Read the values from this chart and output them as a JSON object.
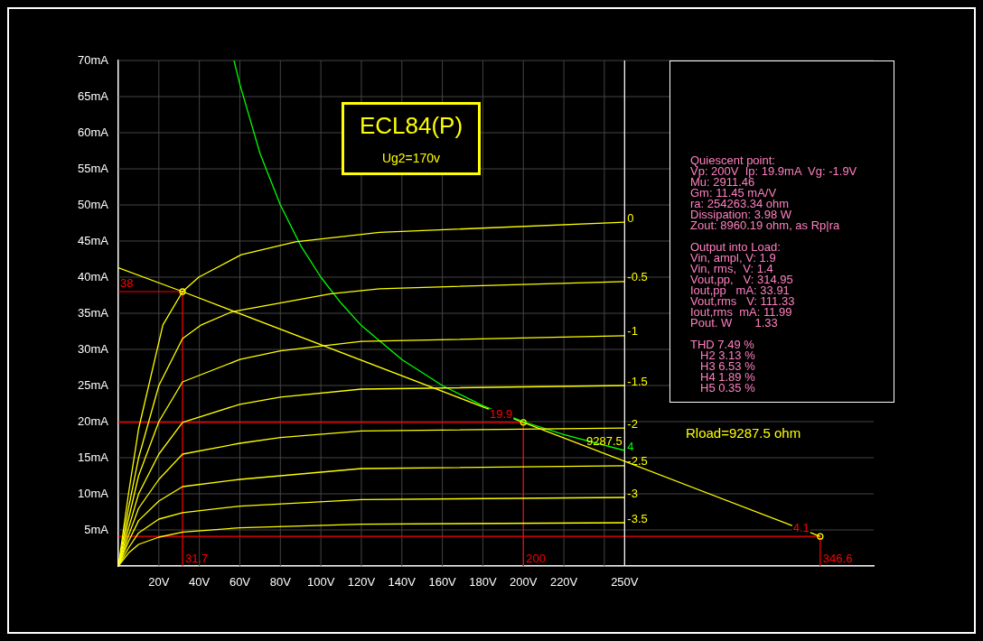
{
  "chart_data": {
    "type": "line",
    "title": "ECL84(P)",
    "subtitle": "Ug2=170v",
    "xlim": [
      0,
      373
    ],
    "ylim": [
      0,
      70
    ],
    "xticks": [
      {
        "value": 20,
        "label": "20V"
      },
      {
        "value": 40,
        "label": "40V"
      },
      {
        "value": 60,
        "label": "60V"
      },
      {
        "value": 80,
        "label": "80V"
      },
      {
        "value": 100,
        "label": "100V"
      },
      {
        "value": 120,
        "label": "120V"
      },
      {
        "value": 140,
        "label": "140V"
      },
      {
        "value": 160,
        "label": "160V"
      },
      {
        "value": 180,
        "label": "180V"
      },
      {
        "value": 200,
        "label": "200V"
      },
      {
        "value": 220,
        "label": "220V"
      },
      {
        "value": 240,
        "label": null
      },
      {
        "value": 250,
        "label": "250V"
      }
    ],
    "yticks": [
      {
        "value": 5,
        "label": "5mA"
      },
      {
        "value": 10,
        "label": "10mA"
      },
      {
        "value": 15,
        "label": "15mA"
      },
      {
        "value": 20,
        "label": "20mA"
      },
      {
        "value": 25,
        "label": "25mA"
      },
      {
        "value": 30,
        "label": "30mA"
      },
      {
        "value": 35,
        "label": "35mA"
      },
      {
        "value": 40,
        "label": "40mA"
      },
      {
        "value": 45,
        "label": "45mA"
      },
      {
        "value": 50,
        "label": "50mA"
      },
      {
        "value": 55,
        "label": "55mA"
      },
      {
        "value": 60,
        "label": "60mA"
      },
      {
        "value": 65,
        "label": "65mA"
      },
      {
        "value": 70,
        "label": "70mA"
      }
    ],
    "grid": true,
    "legend": false,
    "marker": "none",
    "line_style": "solid",
    "series": [
      {
        "name": "0",
        "color": "#ffff00",
        "x": [
          0,
          5,
          10,
          22,
          31.7,
          39.7,
          60.7,
          87.5,
          129,
          250
        ],
        "values": [
          0,
          10,
          19,
          33.4,
          38,
          40,
          43.1,
          44.9,
          46.2,
          47.6
        ]
      },
      {
        "name": "-0.5",
        "color": "#ffff00",
        "x": [
          0,
          5,
          10,
          20,
          31.7,
          41,
          56,
          105,
          129,
          250
        ],
        "values": [
          0,
          8,
          15,
          25,
          31.5,
          33.4,
          35.2,
          37.7,
          38.4,
          39.4
        ]
      },
      {
        "name": "-1",
        "color": "#ffff00",
        "x": [
          0,
          5,
          10,
          20,
          31.7,
          60,
          80,
          120,
          250
        ],
        "values": [
          0,
          6.5,
          12.5,
          20,
          25.5,
          28.6,
          29.8,
          31.1,
          31.9
        ]
      },
      {
        "name": "-1.5",
        "color": "#ffff00",
        "x": [
          0,
          5,
          10,
          20,
          31.7,
          60,
          80,
          120,
          250
        ],
        "values": [
          0,
          5.2,
          10,
          15.5,
          19.9,
          22.4,
          23.4,
          24.5,
          25
        ]
      },
      {
        "name": "-2",
        "color": "#ffff00",
        "x": [
          0,
          5,
          10,
          20,
          31.7,
          60,
          80,
          120,
          250
        ],
        "values": [
          0,
          4.2,
          8,
          12,
          15.5,
          17,
          17.8,
          18.7,
          19.1
        ]
      },
      {
        "name": "-2.5",
        "color": "#ffff00",
        "x": [
          0,
          5,
          10,
          20,
          31.7,
          60,
          100,
          120,
          250
        ],
        "values": [
          0,
          3.4,
          6.3,
          9,
          11,
          12,
          13,
          13.5,
          13.9
        ]
      },
      {
        "name": "-3",
        "color": "#ffff00",
        "x": [
          0,
          5,
          10,
          20,
          31.7,
          60,
          120,
          250
        ],
        "values": [
          0,
          2.5,
          4.6,
          6.5,
          7.4,
          8.3,
          9.2,
          9.5
        ]
      },
      {
        "name": "-3.5",
        "color": "#ffff00",
        "x": [
          0,
          5,
          10,
          20,
          31.7,
          60,
          120,
          250
        ],
        "values": [
          0,
          1.8,
          3,
          4,
          4.7,
          5.3,
          5.8,
          6
        ]
      },
      {
        "name": "4",
        "color": "#00ff00",
        "x": [
          57.1,
          60,
          70,
          80,
          90,
          100,
          110,
          120,
          140,
          160,
          180,
          200,
          220,
          250
        ],
        "values": [
          70,
          66.7,
          57.1,
          50,
          44.4,
          40,
          36.4,
          33.3,
          28.6,
          25,
          22.2,
          20,
          18.2,
          16
        ]
      },
      {
        "color": "#ffff00",
        "x": [
          0,
          31.7,
          200,
          346.6
        ],
        "values": [
          41.3,
          38,
          19.9,
          4.1
        ]
      },
      {
        "type": "scatter",
        "marker": "circle",
        "color": "#ffff00",
        "x": [
          31.7,
          200,
          346.6
        ],
        "values": [
          38,
          19.9,
          4.1
        ]
      }
    ],
    "ref_lines": [
      {
        "axis": "y",
        "value": 38,
        "label": "38",
        "color": "#ff0000"
      },
      {
        "axis": "x",
        "value": 31.7,
        "label": "31.7",
        "color": "#ff0000"
      },
      {
        "axis": "y",
        "value": 19.9,
        "label": "19.9",
        "color": "#ff0000"
      },
      {
        "axis": "x",
        "value": 200,
        "label": "200",
        "color": "#ff0000"
      },
      {
        "axis": "y",
        "value": 4.1,
        "label": "4.1",
        "color": "#ff0000"
      },
      {
        "axis": "x",
        "value": 346.6,
        "label": "346.6",
        "color": "#ff0000"
      },
      {
        "axis": "x",
        "value": 250,
        "color": "#ffffff"
      }
    ],
    "annotations": [
      {
        "text": "9287.5",
        "x": 240,
        "y": 17.2
      },
      "Quiescent point:",
      "Vp: 200V  Ip: 19.9mA  Vg: -1.9V",
      "Mu: 2911.46",
      "Gm: 11.45 mA/V",
      "ra: 254263.34 ohm",
      "Dissipation: 3.98 W",
      "Zout: 8960.19 ohm, as Rp|ra",
      "Output into Load:",
      "Vin, ampl, V: 1.9",
      "Vin, rms,  V: 1.4",
      "Vout,pp,   V: 314.95",
      "Iout,pp   mA: 33.91",
      "Vout,rms   V: 111.33",
      "Iout,rms  mA: 11.99",
      "Pout. W       1.33",
      "THD 7.49 %",
      "H2 3.13 %",
      "H3 6.53 %",
      "H4 1.89 %",
      "H5 0.35 %",
      "Rload=9287.5 ohm"
    ]
  }
}
